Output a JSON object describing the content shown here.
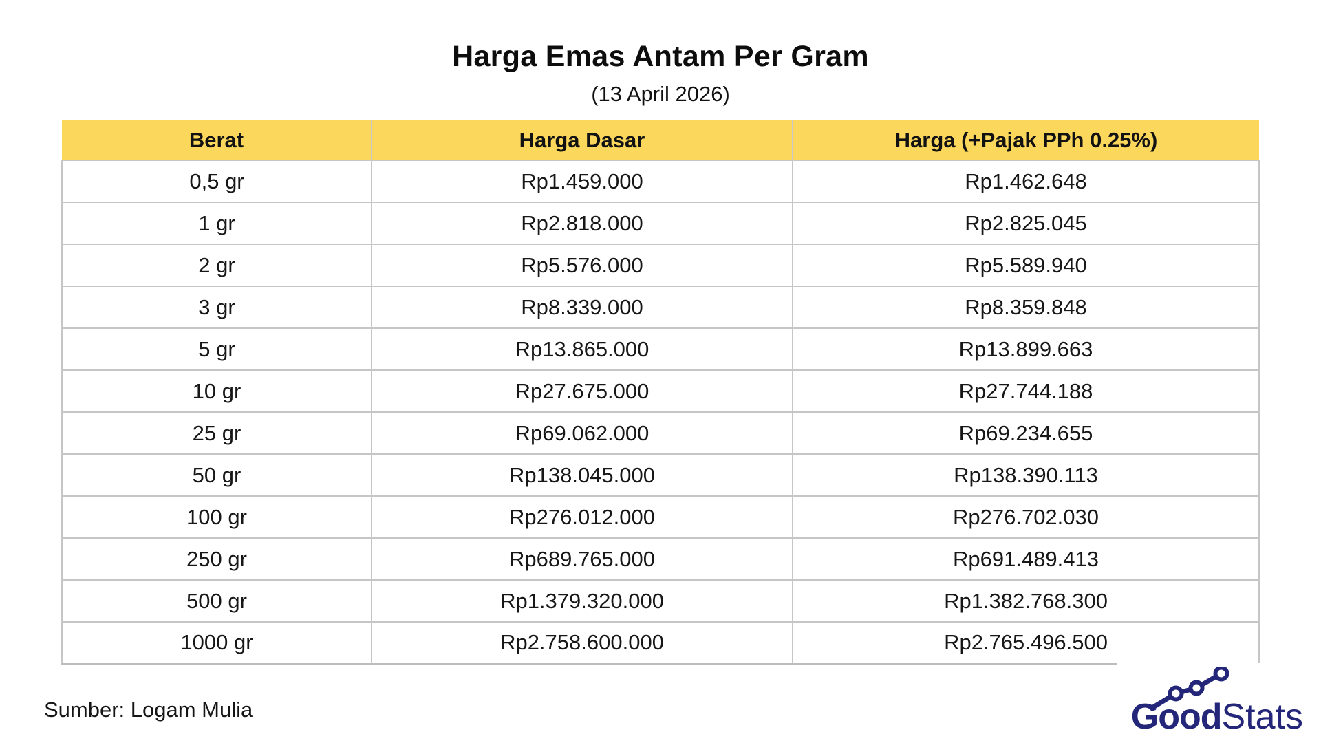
{
  "header": {
    "title": "Harga Emas Antam Per Gram",
    "subtitle": "(13 April 2026)"
  },
  "table": {
    "header_bg": "#FBD85C",
    "border_color": "#C6C6C6",
    "columns": [
      "Berat",
      "Harga Dasar",
      "Harga (+Pajak PPh 0.25%)"
    ],
    "rows": [
      [
        "0,5 gr",
        "Rp1.459.000",
        "Rp1.462.648"
      ],
      [
        "1 gr",
        "Rp2.818.000",
        "Rp2.825.045"
      ],
      [
        "2 gr",
        "Rp5.576.000",
        "Rp5.589.940"
      ],
      [
        "3 gr",
        "Rp8.339.000",
        "Rp8.359.848"
      ],
      [
        "5 gr",
        "Rp13.865.000",
        "Rp13.899.663"
      ],
      [
        "10 gr",
        "Rp27.675.000",
        "Rp27.744.188"
      ],
      [
        "25 gr",
        "Rp69.062.000",
        "Rp69.234.655"
      ],
      [
        "50 gr",
        "Rp138.045.000",
        "Rp138.390.113"
      ],
      [
        "100 gr",
        "Rp276.012.000",
        "Rp276.702.030"
      ],
      [
        "250 gr",
        "Rp689.765.000",
        "Rp691.489.413"
      ],
      [
        "500 gr",
        "Rp1.379.320.000",
        "Rp1.382.768.300"
      ],
      [
        "1000 gr",
        "Rp2.758.600.000",
        "Rp2.765.496.500"
      ]
    ]
  },
  "footer": {
    "source": "Sumber: Logam Mulia",
    "logo": {
      "bold": "Good",
      "light": "Stats",
      "color": "#232679"
    }
  },
  "chart_data": {
    "type": "table",
    "title": "Harga Emas Antam Per Gram",
    "subtitle": "(13 April 2026)",
    "columns": [
      "Berat",
      "Harga Dasar",
      "Harga (+Pajak PPh 0.25%)"
    ],
    "rows": [
      [
        "0,5 gr",
        "Rp1.459.000",
        "Rp1.462.648"
      ],
      [
        "1 gr",
        "Rp2.818.000",
        "Rp2.825.045"
      ],
      [
        "2 gr",
        "Rp5.576.000",
        "Rp5.589.940"
      ],
      [
        "3 gr",
        "Rp8.339.000",
        "Rp8.359.848"
      ],
      [
        "5 gr",
        "Rp13.865.000",
        "Rp13.899.663"
      ],
      [
        "10 gr",
        "Rp27.675.000",
        "Rp27.744.188"
      ],
      [
        "25 gr",
        "Rp69.062.000",
        "Rp69.234.655"
      ],
      [
        "50 gr",
        "Rp138.045.000",
        "Rp138.390.113"
      ],
      [
        "100 gr",
        "Rp276.012.000",
        "Rp276.702.030"
      ],
      [
        "250 gr",
        "Rp689.765.000",
        "Rp691.489.413"
      ],
      [
        "500 gr",
        "Rp1.379.320.000",
        "Rp1.382.768.300"
      ],
      [
        "1000 gr",
        "Rp2.758.600.000",
        "Rp2.765.496.500"
      ]
    ],
    "source": "Sumber: Logam Mulia"
  }
}
